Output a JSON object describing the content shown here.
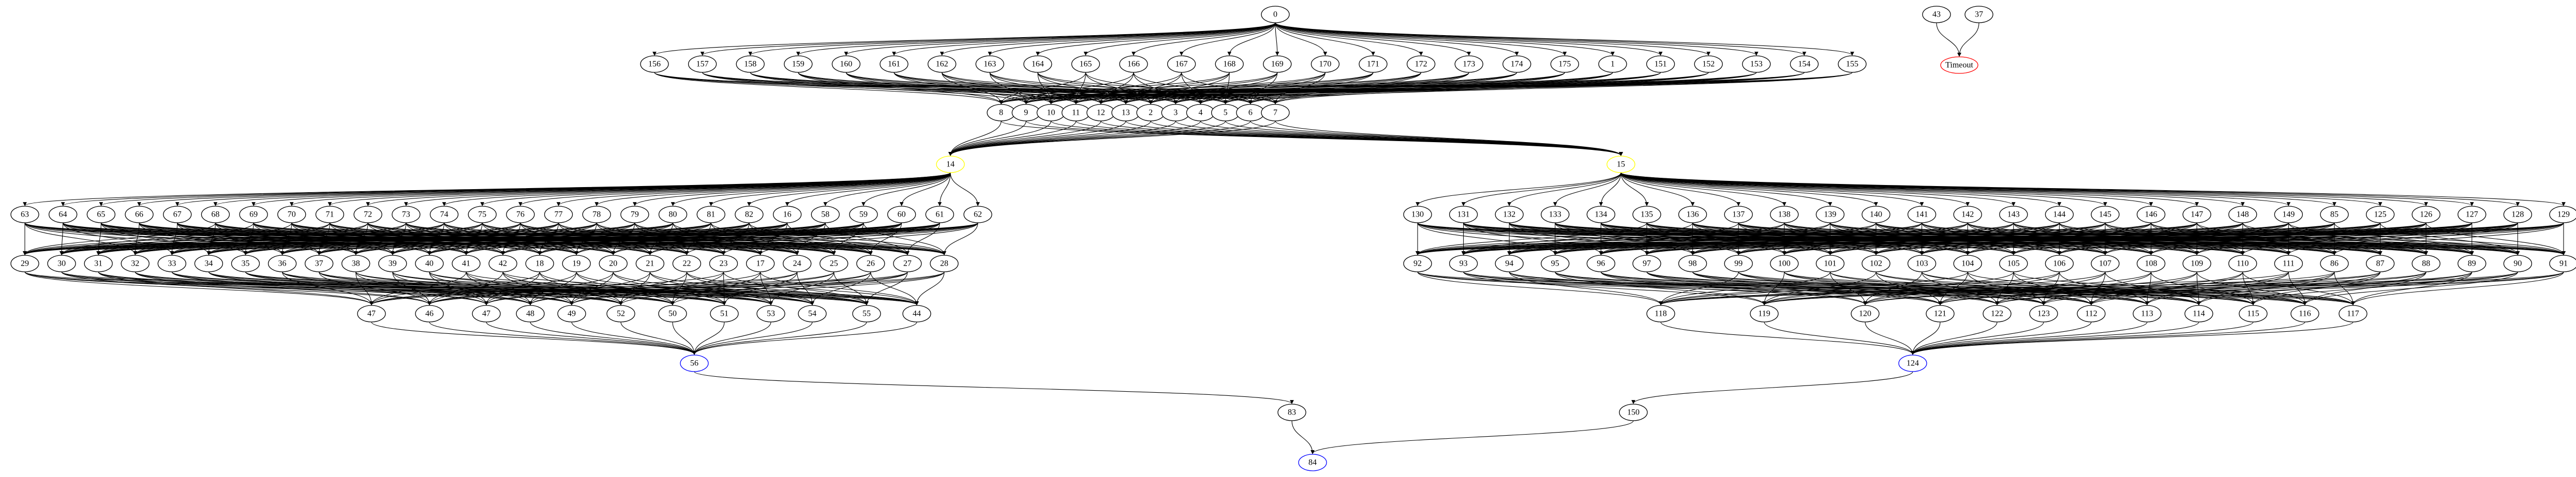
{
  "graph": {
    "colors": {
      "default": "#000000",
      "timeout": "#ff0000",
      "blue": "#0000ff",
      "yellow": "#ffff00",
      "background": "#ffffff"
    },
    "nodes": [
      {
        "id": "0",
        "label": "0"
      },
      {
        "id": "43",
        "label": "43"
      },
      {
        "id": "37",
        "label": "37"
      },
      {
        "id": "156",
        "label": "156"
      },
      {
        "id": "157",
        "label": "157"
      },
      {
        "id": "158",
        "label": "158"
      },
      {
        "id": "159",
        "label": "159"
      },
      {
        "id": "160",
        "label": "160"
      },
      {
        "id": "161",
        "label": "161"
      },
      {
        "id": "162",
        "label": "162"
      },
      {
        "id": "163",
        "label": "163"
      },
      {
        "id": "164",
        "label": "164"
      },
      {
        "id": "165",
        "label": "165"
      },
      {
        "id": "166",
        "label": "166"
      },
      {
        "id": "167",
        "label": "167"
      },
      {
        "id": "168",
        "label": "168"
      },
      {
        "id": "169",
        "label": "169"
      },
      {
        "id": "170",
        "label": "170"
      },
      {
        "id": "171",
        "label": "171"
      },
      {
        "id": "172",
        "label": "172"
      },
      {
        "id": "173",
        "label": "173"
      },
      {
        "id": "174",
        "label": "174"
      },
      {
        "id": "175",
        "label": "175"
      },
      {
        "id": "1",
        "label": "1"
      },
      {
        "id": "151",
        "label": "151"
      },
      {
        "id": "152",
        "label": "152"
      },
      {
        "id": "153",
        "label": "153"
      },
      {
        "id": "154",
        "label": "154"
      },
      {
        "id": "155",
        "label": "155"
      },
      {
        "id": "Timeout",
        "label": "Timeout",
        "color": "timeout"
      },
      {
        "id": "8",
        "label": "8"
      },
      {
        "id": "9",
        "label": "9"
      },
      {
        "id": "10",
        "label": "10"
      },
      {
        "id": "11",
        "label": "11"
      },
      {
        "id": "12",
        "label": "12"
      },
      {
        "id": "13",
        "label": "13"
      },
      {
        "id": "2",
        "label": "2"
      },
      {
        "id": "3",
        "label": "3"
      },
      {
        "id": "4",
        "label": "4"
      },
      {
        "id": "5",
        "label": "5"
      },
      {
        "id": "6",
        "label": "6"
      },
      {
        "id": "7",
        "label": "7"
      },
      {
        "id": "14",
        "label": "14",
        "color": "yellow"
      },
      {
        "id": "15",
        "label": "15",
        "color": "yellow"
      },
      {
        "id": "63",
        "label": "63"
      },
      {
        "id": "64",
        "label": "64"
      },
      {
        "id": "65",
        "label": "65"
      },
      {
        "id": "66",
        "label": "66"
      },
      {
        "id": "67",
        "label": "67"
      },
      {
        "id": "68",
        "label": "68"
      },
      {
        "id": "69",
        "label": "69"
      },
      {
        "id": "70",
        "label": "70"
      },
      {
        "id": "71",
        "label": "71"
      },
      {
        "id": "72",
        "label": "72"
      },
      {
        "id": "73",
        "label": "73"
      },
      {
        "id": "74",
        "label": "74"
      },
      {
        "id": "75",
        "label": "75"
      },
      {
        "id": "76",
        "label": "76"
      },
      {
        "id": "77",
        "label": "77"
      },
      {
        "id": "78",
        "label": "78"
      },
      {
        "id": "79",
        "label": "79"
      },
      {
        "id": "80",
        "label": "80"
      },
      {
        "id": "81",
        "label": "81"
      },
      {
        "id": "82",
        "label": "82"
      },
      {
        "id": "16",
        "label": "16"
      },
      {
        "id": "58",
        "label": "58"
      },
      {
        "id": "59",
        "label": "59"
      },
      {
        "id": "60",
        "label": "60"
      },
      {
        "id": "61",
        "label": "61"
      },
      {
        "id": "62",
        "label": "62"
      },
      {
        "id": "29",
        "label": "29"
      },
      {
        "id": "30",
        "label": "30"
      },
      {
        "id": "31",
        "label": "31"
      },
      {
        "id": "32",
        "label": "32"
      },
      {
        "id": "33",
        "label": "33"
      },
      {
        "id": "34",
        "label": "34"
      },
      {
        "id": "35",
        "label": "35"
      },
      {
        "id": "36",
        "label": "36"
      },
      {
        "id": "37b",
        "label": "37"
      },
      {
        "id": "38",
        "label": "38"
      },
      {
        "id": "39",
        "label": "39"
      },
      {
        "id": "40",
        "label": "40"
      },
      {
        "id": "41",
        "label": "41"
      },
      {
        "id": "42",
        "label": "42"
      },
      {
        "id": "18",
        "label": "18"
      },
      {
        "id": "19",
        "label": "19"
      },
      {
        "id": "20",
        "label": "20"
      },
      {
        "id": "21",
        "label": "21"
      },
      {
        "id": "22",
        "label": "22"
      },
      {
        "id": "23",
        "label": "23"
      },
      {
        "id": "17",
        "label": "17"
      },
      {
        "id": "24",
        "label": "24"
      },
      {
        "id": "25",
        "label": "25"
      },
      {
        "id": "26",
        "label": "26"
      },
      {
        "id": "27",
        "label": "27"
      },
      {
        "id": "28",
        "label": "28"
      },
      {
        "id": "47",
        "label": "47"
      },
      {
        "id": "46",
        "label": "46"
      },
      {
        "id": "47b",
        "label": "47"
      },
      {
        "id": "48",
        "label": "48"
      },
      {
        "id": "49",
        "label": "49"
      },
      {
        "id": "52",
        "label": "52"
      },
      {
        "id": "50",
        "label": "50"
      },
      {
        "id": "51",
        "label": "51"
      },
      {
        "id": "53",
        "label": "53"
      },
      {
        "id": "54",
        "label": "54"
      },
      {
        "id": "55",
        "label": "55"
      },
      {
        "id": "44",
        "label": "44"
      },
      {
        "id": "56",
        "label": "56",
        "color": "blue"
      },
      {
        "id": "83",
        "label": "83"
      },
      {
        "id": "84",
        "label": "84",
        "color": "blue"
      },
      {
        "id": "130",
        "label": "130"
      },
      {
        "id": "131",
        "label": "131"
      },
      {
        "id": "132",
        "label": "132"
      },
      {
        "id": "133",
        "label": "133"
      },
      {
        "id": "134",
        "label": "134"
      },
      {
        "id": "135",
        "label": "135"
      },
      {
        "id": "136",
        "label": "136"
      },
      {
        "id": "137",
        "label": "137"
      },
      {
        "id": "138",
        "label": "138"
      },
      {
        "id": "139",
        "label": "139"
      },
      {
        "id": "140",
        "label": "140"
      },
      {
        "id": "141",
        "label": "141"
      },
      {
        "id": "142",
        "label": "142"
      },
      {
        "id": "143",
        "label": "143"
      },
      {
        "id": "144",
        "label": "144"
      },
      {
        "id": "145",
        "label": "145"
      },
      {
        "id": "146",
        "label": "146"
      },
      {
        "id": "147",
        "label": "147"
      },
      {
        "id": "148",
        "label": "148"
      },
      {
        "id": "149",
        "label": "149"
      },
      {
        "id": "85",
        "label": "85"
      },
      {
        "id": "125",
        "label": "125"
      },
      {
        "id": "126",
        "label": "126"
      },
      {
        "id": "127",
        "label": "127"
      },
      {
        "id": "128",
        "label": "128"
      },
      {
        "id": "129",
        "label": "129"
      },
      {
        "id": "92",
        "label": "92"
      },
      {
        "id": "93",
        "label": "93"
      },
      {
        "id": "94",
        "label": "94"
      },
      {
        "id": "95",
        "label": "95"
      },
      {
        "id": "96",
        "label": "96"
      },
      {
        "id": "97",
        "label": "97"
      },
      {
        "id": "98",
        "label": "98"
      },
      {
        "id": "99",
        "label": "99"
      },
      {
        "id": "100",
        "label": "100"
      },
      {
        "id": "101",
        "label": "101"
      },
      {
        "id": "102",
        "label": "102"
      },
      {
        "id": "103",
        "label": "103"
      },
      {
        "id": "104",
        "label": "104"
      },
      {
        "id": "105",
        "label": "105"
      },
      {
        "id": "106",
        "label": "106"
      },
      {
        "id": "107",
        "label": "107"
      },
      {
        "id": "108",
        "label": "108"
      },
      {
        "id": "109",
        "label": "109"
      },
      {
        "id": "110",
        "label": "110"
      },
      {
        "id": "111",
        "label": "111"
      },
      {
        "id": "86",
        "label": "86"
      },
      {
        "id": "87",
        "label": "87"
      },
      {
        "id": "88",
        "label": "88"
      },
      {
        "id": "89",
        "label": "89"
      },
      {
        "id": "90",
        "label": "90"
      },
      {
        "id": "91",
        "label": "91"
      },
      {
        "id": "118",
        "label": "118"
      },
      {
        "id": "119",
        "label": "119"
      },
      {
        "id": "120",
        "label": "120"
      },
      {
        "id": "121",
        "label": "121"
      },
      {
        "id": "122",
        "label": "122"
      },
      {
        "id": "123",
        "label": "123"
      },
      {
        "id": "112",
        "label": "112"
      },
      {
        "id": "113",
        "label": "113"
      },
      {
        "id": "114",
        "label": "114"
      },
      {
        "id": "115",
        "label": "115"
      },
      {
        "id": "116",
        "label": "116"
      },
      {
        "id": "117",
        "label": "117"
      },
      {
        "id": "124",
        "label": "124",
        "color": "blue"
      },
      {
        "id": "150",
        "label": "150"
      }
    ]
  }
}
